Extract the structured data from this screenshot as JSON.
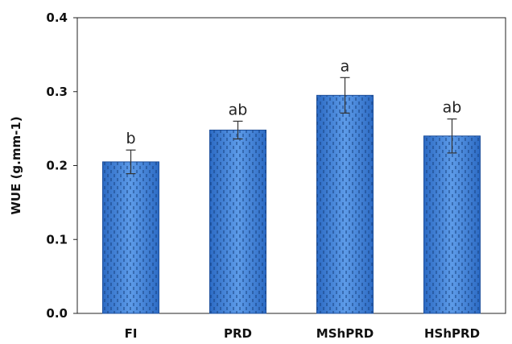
{
  "chart_data": {
    "type": "bar",
    "categories": [
      "FI",
      "PRD",
      "MShPRD",
      "HShPRD"
    ],
    "values": [
      0.205,
      0.248,
      0.295,
      0.24
    ],
    "errors": [
      0.016,
      0.012,
      0.024,
      0.023
    ],
    "significance_letters": [
      "b",
      "ab",
      "a",
      "ab"
    ],
    "ylabel": "WUE (g.mm-1)",
    "xlabel": "",
    "ylim": [
      0,
      0.4
    ],
    "yticks": [
      "0.0",
      "0.1",
      "0.2",
      "0.3",
      "0.4"
    ],
    "grid": false,
    "bar_color": "#3f7fd6",
    "bar_pattern": "dashed-vertical"
  }
}
